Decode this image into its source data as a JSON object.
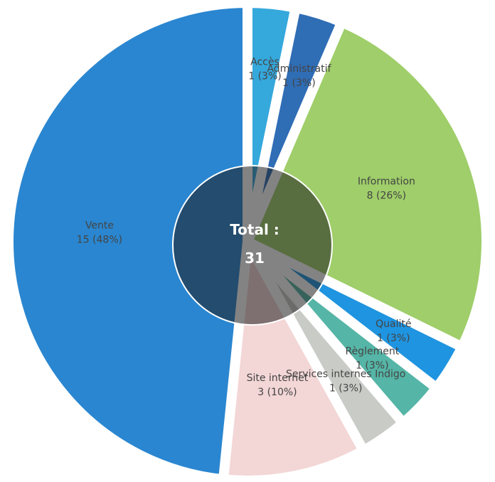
{
  "chart_data": {
    "type": "pie",
    "categories": [
      "Accès",
      "Administratif",
      "Information",
      "Qualité",
      "Règlement",
      "Services internes Indigo",
      "Site internet",
      "Vente"
    ],
    "values": [
      1,
      1,
      8,
      1,
      1,
      1,
      3,
      15
    ],
    "value_labels": [
      "1 (3%)",
      "1 (3%)",
      "8 (26%)",
      "1 (3%)",
      "1 (3%)",
      "1 (3%)",
      "3 (10%)",
      "15 (48%)"
    ],
    "colors": [
      "#35a8dc",
      "#2f6db5",
      "#9fce6a",
      "#1f94e0",
      "#55b5a6",
      "#c9cbc6",
      "#f3d6d6",
      "#2a86d0"
    ],
    "center_label": "Total :",
    "total": 31
  }
}
